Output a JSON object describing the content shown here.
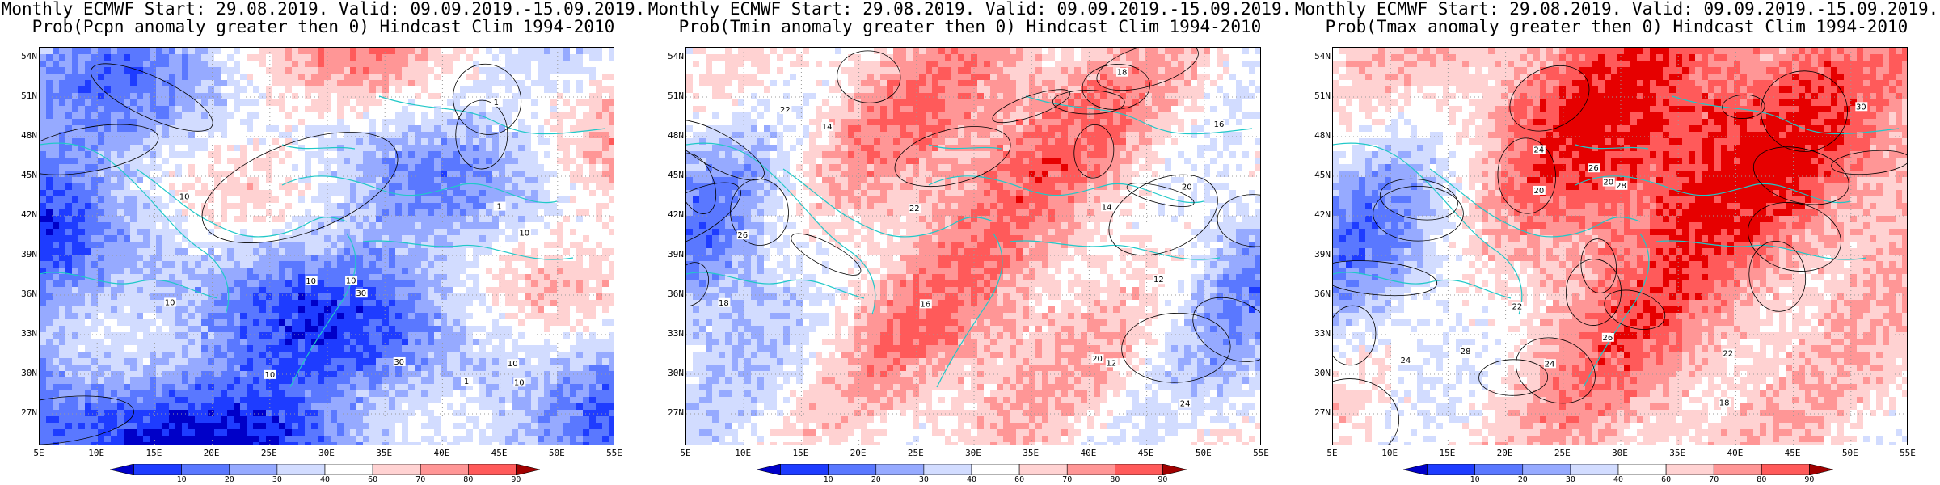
{
  "panels": [
    {
      "title_line1": "Monthly ECMWF Start: 29.08.2019. Valid: 09.09.2019.-15.09.2019.",
      "title_line2": "Prob(Pcpn anomaly greater then 0) Hindcast Clim 1994-2010",
      "variable": "Pcpn",
      "contour_labels": [
        "10",
        "10",
        "30",
        "10",
        "10",
        "10",
        "30",
        "10",
        "10",
        "1",
        "1",
        "1",
        "10"
      ]
    },
    {
      "title_line1": "Monthly ECMWF Start: 29.08.2019. Valid: 09.09.2019.-15.09.2019.",
      "title_line2": "Prob(Tmin anomaly greater then 0) Hindcast Clim 1994-2010",
      "variable": "Tmin",
      "contour_labels": [
        "12",
        "12",
        "14",
        "14",
        "16",
        "18",
        "20",
        "22",
        "24",
        "26",
        "22",
        "20",
        "18",
        "16"
      ]
    },
    {
      "title_line1": "Monthly ECMWF Start: 29.08.2019. Valid: 09.09.2019.-15.09.2019.",
      "title_line2": "Prob(Tmax anomaly greater then 0) Hindcast Clim 1994-2010",
      "variable": "Tmax",
      "contour_labels": [
        "20",
        "22",
        "24",
        "26",
        "28",
        "24",
        "22",
        "20",
        "18",
        "24",
        "26",
        "28",
        "30"
      ]
    }
  ],
  "axes": {
    "lat_ticks": [
      "54N",
      "51N",
      "48N",
      "45N",
      "42N",
      "39N",
      "36N",
      "33N",
      "30N",
      "27N"
    ],
    "lon_ticks": [
      "5E",
      "10E",
      "15E",
      "20E",
      "25E",
      "30E",
      "35E",
      "40E",
      "45E",
      "50E",
      "55E"
    ]
  },
  "colorbar": {
    "labels": [
      "10",
      "20",
      "30",
      "40",
      "60",
      "70",
      "80",
      "90"
    ],
    "colors": [
      "#0000c8",
      "#1e3cff",
      "#5a78ff",
      "#96aaff",
      "#d2dcff",
      "#ffffff",
      "#ffd2d2",
      "#ff9696",
      "#ff5a5a",
      "#e60000",
      "#a00000"
    ]
  }
}
